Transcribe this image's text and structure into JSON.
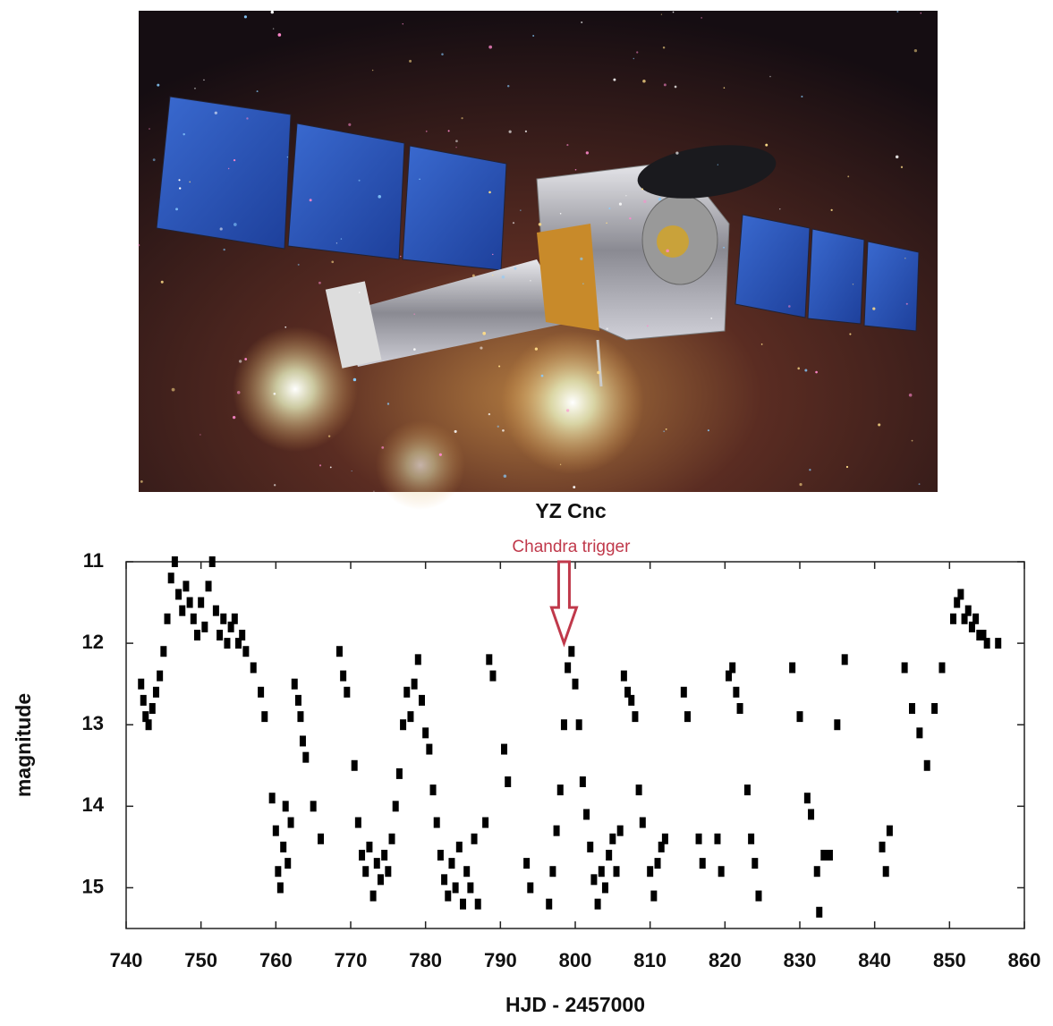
{
  "chart_data": {
    "type": "scatter",
    "title": "YZ Cnc",
    "xlabel": "HJD - 2457000",
    "ylabel": "magnitude",
    "annotation": {
      "text": "Chandra trigger",
      "x": 798.5,
      "y": 12,
      "color": "#c0394b"
    },
    "color": "#000000",
    "y_inverted": true,
    "xlim": [
      740,
      860
    ],
    "xticks": [
      740,
      750,
      760,
      770,
      780,
      790,
      800,
      810,
      820,
      830,
      840,
      850,
      860
    ],
    "ylim": [
      11,
      15.5
    ],
    "yticks": [
      11,
      12,
      13,
      14,
      15
    ],
    "x": [
      742,
      742.3,
      742.6,
      743,
      743.5,
      744,
      744.5,
      745,
      745.5,
      746,
      746.5,
      747,
      747.5,
      748,
      748.5,
      749,
      749.5,
      750,
      750.5,
      751,
      751.5,
      752,
      752.5,
      753,
      753.5,
      754,
      754.5,
      755,
      755.5,
      756,
      757,
      758,
      758.5,
      759.5,
      760,
      760.3,
      760.6,
      761,
      761.3,
      761.6,
      762,
      762.5,
      763,
      763.3,
      763.6,
      764,
      765,
      766,
      768.5,
      769,
      769.5,
      770.5,
      771,
      771.5,
      772,
      772.5,
      773,
      773.5,
      774,
      774.5,
      775,
      775.5,
      776,
      776.5,
      777,
      777.5,
      778,
      778.5,
      779,
      779.5,
      780,
      780.5,
      781,
      781.5,
      782,
      782.5,
      783,
      783.5,
      784,
      784.5,
      785,
      785.5,
      786,
      786.5,
      787,
      788,
      788.5,
      789,
      790.5,
      791,
      793.5,
      794,
      796.5,
      797,
      797.5,
      798,
      798.5,
      799,
      799.5,
      800,
      800.5,
      801,
      801.5,
      802,
      802.5,
      803,
      803.5,
      804,
      804.5,
      805,
      805.5,
      806,
      806.5,
      807,
      807.5,
      808,
      808.5,
      809,
      810,
      810.5,
      811,
      811.5,
      812,
      814.5,
      815,
      816.5,
      817,
      819,
      819.5,
      820.5,
      821,
      821.5,
      822,
      823,
      823.5,
      824,
      824.5,
      829,
      830,
      831,
      831.5,
      832.3,
      832.6,
      833.2,
      834,
      835,
      836,
      841,
      841.5,
      842,
      844,
      845,
      846,
      847,
      848,
      849,
      850.5,
      851,
      851.5,
      852,
      852.5,
      853,
      853.5,
      854,
      854.5,
      855,
      856.5
    ],
    "values": [
      12.5,
      12.7,
      12.9,
      13,
      12.8,
      12.6,
      12.4,
      12.1,
      11.7,
      11.2,
      11,
      11.4,
      11.6,
      11.3,
      11.5,
      11.7,
      11.9,
      11.5,
      11.8,
      11.3,
      11,
      11.6,
      11.9,
      11.7,
      12,
      11.8,
      11.7,
      12,
      11.9,
      12.1,
      12.3,
      12.6,
      12.9,
      13.9,
      14.3,
      14.8,
      15,
      14.5,
      14,
      14.7,
      14.2,
      12.5,
      12.7,
      12.9,
      13.2,
      13.4,
      14,
      14.4,
      12.1,
      12.4,
      12.6,
      13.5,
      14.2,
      14.6,
      14.8,
      14.5,
      15.1,
      14.7,
      14.9,
      14.6,
      14.8,
      14.4,
      14,
      13.6,
      13,
      12.6,
      12.9,
      12.5,
      12.2,
      12.7,
      13.1,
      13.3,
      13.8,
      14.2,
      14.6,
      14.9,
      15.1,
      14.7,
      15,
      14.5,
      15.2,
      14.8,
      15,
      14.4,
      15.2,
      14.2,
      12.2,
      12.4,
      13.3,
      13.7,
      14.7,
      15,
      15.2,
      14.8,
      14.3,
      13.8,
      13,
      12.3,
      12.1,
      12.5,
      13,
      13.7,
      14.1,
      14.5,
      14.9,
      15.2,
      14.8,
      15,
      14.6,
      14.4,
      14.8,
      14.3,
      12.4,
      12.6,
      12.7,
      12.9,
      13.8,
      14.2,
      14.8,
      15.1,
      14.7,
      14.5,
      14.4,
      12.6,
      12.9,
      14.4,
      14.7,
      14.4,
      14.8,
      12.4,
      12.3,
      12.6,
      12.8,
      13.8,
      14.4,
      14.7,
      15.1,
      12.3,
      12.9,
      13.9,
      14.1,
      14.8,
      15.3,
      14.6,
      14.6,
      13,
      12.2,
      14.5,
      14.8,
      14.3,
      12.3,
      12.8,
      13.1,
      13.5,
      12.8,
      12.3,
      11.7,
      11.5,
      11.4,
      11.7,
      11.6,
      11.8,
      11.7,
      11.9,
      11.9,
      12,
      12
    ]
  }
}
